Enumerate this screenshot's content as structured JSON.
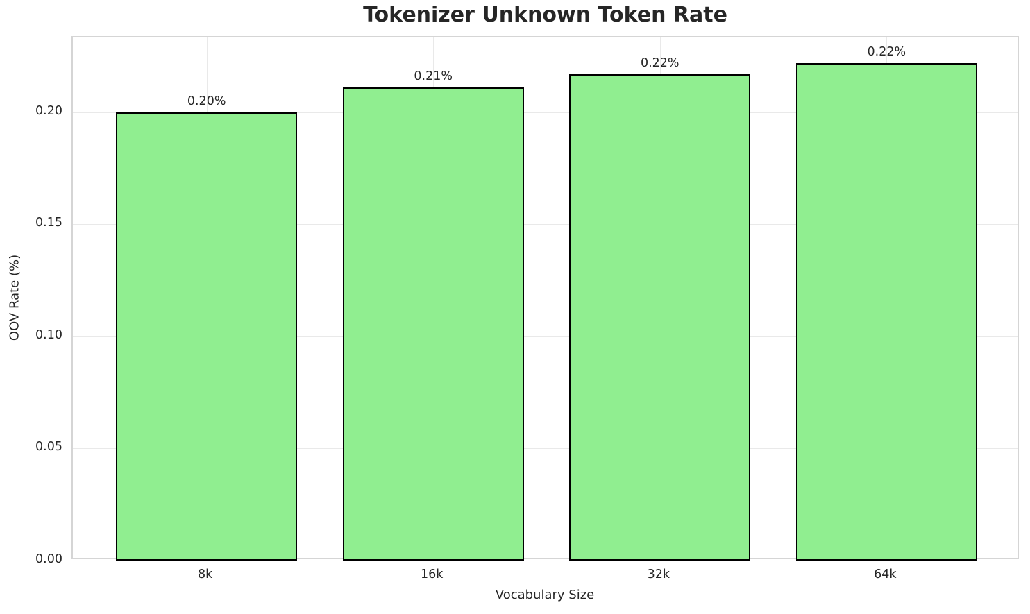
{
  "chart_data": {
    "type": "bar",
    "title": "Tokenizer Unknown Token Rate",
    "xlabel": "Vocabulary Size",
    "ylabel": "OOV Rate (%)",
    "categories": [
      "8k",
      "16k",
      "32k",
      "64k"
    ],
    "values": [
      0.2,
      0.211,
      0.217,
      0.222
    ],
    "value_labels": [
      "0.20%",
      "0.21%",
      "0.22%",
      "0.22%"
    ],
    "yticks": [
      0.0,
      0.05,
      0.1,
      0.15,
      0.2
    ],
    "ytick_labels": [
      "0.00",
      "0.05",
      "0.10",
      "0.15",
      "0.20"
    ],
    "ylim": [
      0,
      0.2333
    ],
    "xlim": [
      -0.59,
      3.59
    ],
    "bar_width_units": 0.8,
    "grid": true,
    "legend_position": "none",
    "colors": {
      "bar_fill": "#90EE90",
      "bar_edge": "#000000",
      "grid": "#e9e9e9",
      "spine": "#d5d5d5",
      "text": "#262626",
      "background": "#ffffff"
    }
  }
}
